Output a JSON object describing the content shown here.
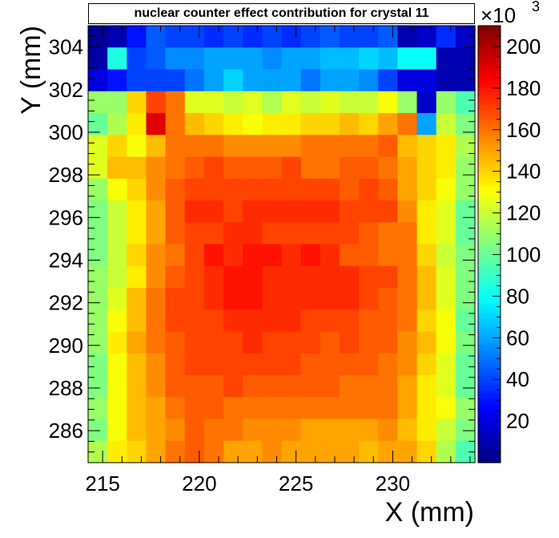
{
  "chart_data": {
    "type": "heatmap",
    "title": "nuclear counter effect contribution for crystal 11",
    "xlabel": "X (mm)",
    "ylabel": "Y (mm)",
    "xlim": [
      214.25,
      234.25
    ],
    "ylim": [
      284.5,
      305.0
    ],
    "x_ticks": [
      215,
      220,
      225,
      230
    ],
    "y_ticks": [
      286,
      288,
      290,
      292,
      294,
      296,
      298,
      300,
      302,
      304
    ],
    "x_bins": 20,
    "y_bins": 20,
    "zlim": [
      0,
      210000
    ],
    "z_multiplier": "×10",
    "z_exponent": "3",
    "z_ticks": [
      20,
      40,
      60,
      80,
      100,
      120,
      140,
      160,
      180,
      200
    ],
    "z_tick_scale": 1000,
    "palette": [
      "#00007f",
      "#0000ff",
      "#0080ff",
      "#00ffff",
      "#80ff80",
      "#ffff00",
      "#ff8000",
      "#ff0000",
      "#7f0000"
    ],
    "values": [
      [
        5000,
        10000,
        30000,
        45000,
        40000,
        40000,
        35000,
        40000,
        35000,
        40000,
        35000,
        40000,
        45000,
        40000,
        40000,
        45000,
        10000,
        15000,
        35000,
        15000
      ],
      [
        8000,
        85000,
        40000,
        45000,
        55000,
        55000,
        60000,
        60000,
        60000,
        55000,
        60000,
        60000,
        65000,
        65000,
        70000,
        65000,
        80000,
        80000,
        10000,
        10000
      ],
      [
        20000,
        30000,
        40000,
        40000,
        40000,
        50000,
        60000,
        70000,
        60000,
        60000,
        60000,
        50000,
        60000,
        60000,
        55000,
        40000,
        20000,
        20000,
        10000,
        10000
      ],
      [
        110000,
        110000,
        140000,
        170000,
        160000,
        125000,
        125000,
        120000,
        125000,
        115000,
        125000,
        120000,
        125000,
        120000,
        120000,
        130000,
        110000,
        15000,
        110000,
        95000
      ],
      [
        100000,
        115000,
        135000,
        190000,
        160000,
        145000,
        140000,
        135000,
        130000,
        135000,
        135000,
        140000,
        140000,
        145000,
        140000,
        150000,
        160000,
        60000,
        120000,
        105000
      ],
      [
        125000,
        140000,
        130000,
        145000,
        160000,
        160000,
        160000,
        155000,
        155000,
        155000,
        155000,
        160000,
        160000,
        160000,
        160000,
        165000,
        145000,
        140000,
        135000,
        115000
      ],
      [
        125000,
        145000,
        145000,
        155000,
        160000,
        165000,
        170000,
        165000,
        165000,
        165000,
        170000,
        160000,
        160000,
        165000,
        165000,
        160000,
        150000,
        140000,
        135000,
        110000
      ],
      [
        110000,
        130000,
        140000,
        155000,
        165000,
        170000,
        170000,
        170000,
        170000,
        170000,
        170000,
        170000,
        170000,
        165000,
        170000,
        165000,
        150000,
        140000,
        130000,
        110000
      ],
      [
        105000,
        120000,
        135000,
        150000,
        165000,
        175000,
        175000,
        170000,
        175000,
        175000,
        175000,
        175000,
        175000,
        170000,
        170000,
        170000,
        155000,
        135000,
        125000,
        100000
      ],
      [
        105000,
        120000,
        135000,
        150000,
        165000,
        170000,
        170000,
        175000,
        175000,
        170000,
        170000,
        170000,
        170000,
        170000,
        165000,
        160000,
        160000,
        135000,
        125000,
        100000
      ],
      [
        105000,
        120000,
        140000,
        155000,
        160000,
        170000,
        180000,
        175000,
        180000,
        180000,
        175000,
        180000,
        175000,
        165000,
        165000,
        160000,
        160000,
        140000,
        120000,
        105000
      ],
      [
        110000,
        120000,
        135000,
        155000,
        165000,
        170000,
        175000,
        180000,
        180000,
        175000,
        175000,
        175000,
        175000,
        175000,
        170000,
        170000,
        160000,
        145000,
        125000,
        105000
      ],
      [
        110000,
        125000,
        145000,
        160000,
        170000,
        170000,
        175000,
        180000,
        180000,
        175000,
        175000,
        175000,
        175000,
        175000,
        170000,
        165000,
        160000,
        145000,
        125000,
        105000
      ],
      [
        110000,
        130000,
        145000,
        160000,
        170000,
        170000,
        170000,
        175000,
        175000,
        175000,
        175000,
        170000,
        170000,
        170000,
        165000,
        165000,
        160000,
        140000,
        130000,
        100000
      ],
      [
        110000,
        135000,
        150000,
        160000,
        165000,
        170000,
        170000,
        170000,
        175000,
        170000,
        170000,
        170000,
        165000,
        170000,
        165000,
        165000,
        155000,
        145000,
        130000,
        105000
      ],
      [
        105000,
        130000,
        145000,
        155000,
        165000,
        170000,
        170000,
        170000,
        170000,
        170000,
        170000,
        165000,
        165000,
        165000,
        165000,
        160000,
        155000,
        140000,
        125000,
        100000
      ],
      [
        105000,
        130000,
        145000,
        155000,
        165000,
        165000,
        165000,
        170000,
        165000,
        165000,
        165000,
        165000,
        165000,
        160000,
        160000,
        160000,
        150000,
        135000,
        125000,
        100000
      ],
      [
        110000,
        130000,
        145000,
        150000,
        160000,
        165000,
        165000,
        160000,
        160000,
        160000,
        160000,
        160000,
        160000,
        160000,
        160000,
        160000,
        150000,
        135000,
        130000,
        110000
      ],
      [
        105000,
        130000,
        145000,
        150000,
        155000,
        165000,
        160000,
        160000,
        155000,
        155000,
        155000,
        150000,
        150000,
        150000,
        150000,
        155000,
        145000,
        135000,
        120000,
        105000
      ],
      [
        115000,
        135000,
        140000,
        150000,
        160000,
        165000,
        160000,
        150000,
        150000,
        155000,
        150000,
        150000,
        150000,
        150000,
        145000,
        150000,
        150000,
        140000,
        115000,
        95000
      ]
    ]
  }
}
